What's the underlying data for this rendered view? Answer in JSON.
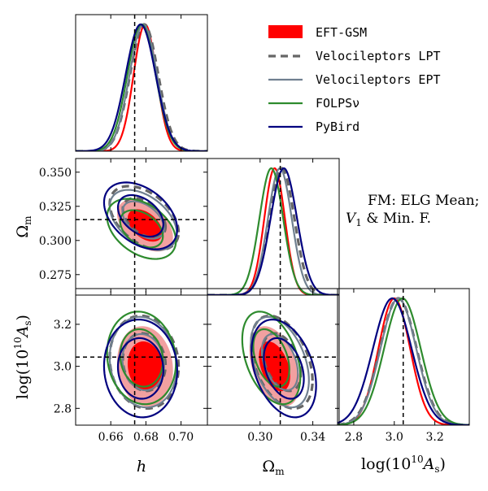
{
  "chart_data": {
    "type": "corner",
    "params": [
      {
        "key": "h",
        "label": "h",
        "range": [
          0.64,
          0.715
        ],
        "ticks": [
          0.66,
          0.68,
          0.7
        ],
        "tick_labels": [
          "0.66",
          "0.68",
          "0.70"
        ],
        "truth": 0.6736
      },
      {
        "key": "om",
        "label": "Ω",
        "label_sub": "m",
        "range": [
          0.26,
          0.36
        ],
        "ticks": [
          0.275,
          0.3,
          0.325,
          0.35
        ],
        "tick_labels": [
          "0.275",
          "0.300",
          "0.325",
          "0.350"
        ],
        "ticks_bottom": [
          0.3,
          0.34
        ],
        "tick_labels_bottom": [
          "0.30",
          "0.34"
        ],
        "truth": 0.3153
      },
      {
        "key": "las",
        "label": "log(10",
        "label_sup": "10",
        "label_as": "A",
        "label_s": "s",
        "range": [
          2.72,
          3.37
        ],
        "ticks": [
          2.8,
          3.0,
          3.2
        ],
        "tick_labels": [
          "2.8",
          "3.0",
          "3.2"
        ],
        "truth": 3.044
      }
    ],
    "series": [
      {
        "name": "EFT-GSM",
        "color": "#ff0000",
        "style": "filled",
        "means": [
          0.6795,
          0.311,
          3.0
        ],
        "sigmas": [
          0.0065,
          0.0078,
          0.078
        ],
        "rho": {
          "h_om": -0.45,
          "h_las": -0.1,
          "om_las": -0.4
        }
      },
      {
        "name": "Velocileptors LPT",
        "color": "#666666",
        "style": "dashed",
        "means": [
          0.679,
          0.3165,
          3.02
        ],
        "sigmas": [
          0.008,
          0.0095,
          0.09
        ],
        "rho": {
          "h_om": -0.45,
          "h_las": -0.1,
          "om_las": -0.4
        }
      },
      {
        "name": "Velocileptors EPT",
        "color": "#708090",
        "style": "solid",
        "means": [
          0.6785,
          0.315,
          3.02
        ],
        "sigmas": [
          0.0078,
          0.009,
          0.088
        ],
        "rho": {
          "h_om": -0.45,
          "h_las": -0.1,
          "om_las": -0.4
        }
      },
      {
        "name": "FOLPSν",
        "color": "#2e8b2e",
        "style": "solid",
        "means": [
          0.6775,
          0.3085,
          3.04
        ],
        "sigmas": [
          0.008,
          0.009,
          0.09
        ],
        "rho": {
          "h_om": -0.4,
          "h_las": -0.1,
          "om_las": -0.4
        }
      },
      {
        "name": "PyBird",
        "color": "#00007f",
        "style": "solid",
        "means": [
          0.677,
          0.318,
          2.99
        ],
        "sigmas": [
          0.0085,
          0.01,
          0.095
        ],
        "rho": {
          "h_om": -0.4,
          "h_las": -0.05,
          "om_las": -0.35
        }
      }
    ],
    "annotation": {
      "line1": "FM: ELG Mean;",
      "line2_prefix": "V",
      "line2_sub": "1",
      "line2_suffix": " & Min. F."
    },
    "legend_position": "top-right"
  }
}
